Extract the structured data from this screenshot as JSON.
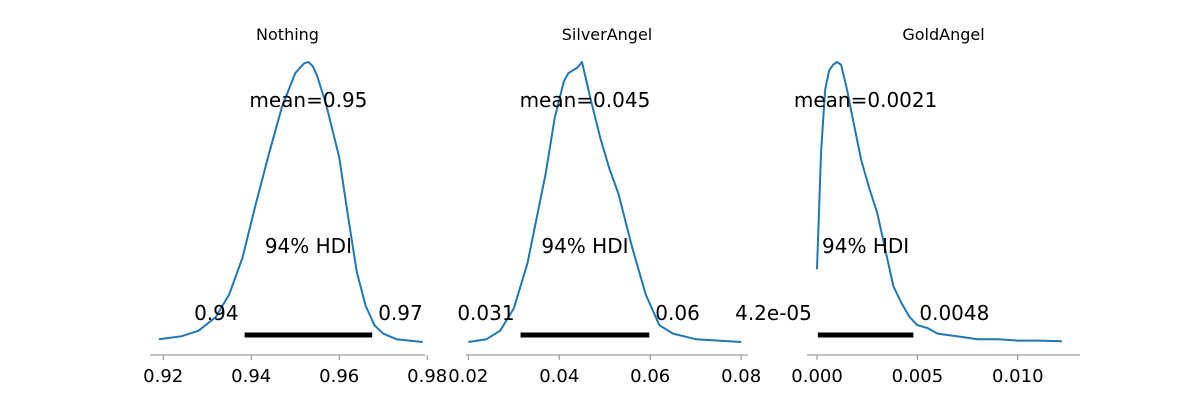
{
  "colors": {
    "curve": "#1f77b4",
    "hdi_bar": "#000000",
    "axis": "#888888"
  },
  "chart_data": [
    {
      "type": "area",
      "title": "Nothing",
      "mean_label": "mean=0.95",
      "hdi_label": "94% HDI",
      "hdi_low_label": "0.94",
      "hdi_high_label": "0.97",
      "hdi": [
        0.9385,
        0.9675
      ],
      "xlim": [
        0.917,
        0.9795
      ],
      "ticks": [
        0.92,
        0.94,
        0.96,
        0.98
      ],
      "tick_labels": [
        "0.92",
        "0.94",
        "0.96",
        "0.98"
      ],
      "density_x": [
        0.919,
        0.924,
        0.928,
        0.932,
        0.935,
        0.938,
        0.941,
        0.944,
        0.947,
        0.95,
        0.952,
        0.953,
        0.954,
        0.955,
        0.957,
        0.96,
        0.962,
        0.964,
        0.966,
        0.968,
        0.97,
        0.973,
        0.976,
        0.979
      ],
      "density_y": [
        0.01,
        0.02,
        0.04,
        0.09,
        0.17,
        0.3,
        0.49,
        0.67,
        0.84,
        0.96,
        0.995,
        1.0,
        0.985,
        0.95,
        0.85,
        0.66,
        0.45,
        0.25,
        0.13,
        0.06,
        0.03,
        0.01,
        0.005,
        0.0
      ]
    },
    {
      "type": "area",
      "title": "SilverAngel",
      "mean_label": "mean=0.045",
      "hdi_label": "94% HDI",
      "hdi_low_label": "0.031",
      "hdi_high_label": "0.06",
      "hdi": [
        0.0315,
        0.0598
      ],
      "xlim": [
        0.0195,
        0.0815
      ],
      "ticks": [
        0.02,
        0.04,
        0.06,
        0.08
      ],
      "tick_labels": [
        "0.02",
        "0.04",
        "0.06",
        "0.08"
      ],
      "density_x": [
        0.02,
        0.024,
        0.027,
        0.03,
        0.033,
        0.035,
        0.037,
        0.039,
        0.041,
        0.042,
        0.043,
        0.044,
        0.045,
        0.046,
        0.047,
        0.049,
        0.051,
        0.053,
        0.056,
        0.059,
        0.062,
        0.065,
        0.07,
        0.075,
        0.08
      ],
      "density_y": [
        0.0,
        0.01,
        0.04,
        0.12,
        0.28,
        0.44,
        0.6,
        0.8,
        0.93,
        0.96,
        0.97,
        0.98,
        1.0,
        0.93,
        0.86,
        0.73,
        0.62,
        0.53,
        0.34,
        0.17,
        0.06,
        0.03,
        0.01,
        0.005,
        0.0
      ]
    },
    {
      "type": "area",
      "title": "GoldAngel",
      "mean_label": "mean=0.0021",
      "hdi_label": "94% HDI",
      "hdi_low_label": "4.2e-05",
      "hdi_high_label": "0.0048",
      "hdi": [
        4.2e-05,
        0.0048
      ],
      "xlim": [
        -0.0005,
        0.0131
      ],
      "ticks": [
        0.0,
        0.005,
        0.01
      ],
      "tick_labels": [
        "0.000",
        "0.005",
        "0.010"
      ],
      "density_x": [
        0.0,
        0.0002,
        0.0004,
        0.0006,
        0.0008,
        0.001,
        0.0012,
        0.0015,
        0.0018,
        0.0022,
        0.0026,
        0.003,
        0.0034,
        0.0038,
        0.0042,
        0.0046,
        0.005,
        0.0055,
        0.006,
        0.007,
        0.008,
        0.009,
        0.01,
        0.011,
        0.0122
      ],
      "density_y": [
        0.26,
        0.68,
        0.9,
        0.97,
        0.99,
        1.0,
        0.99,
        0.9,
        0.79,
        0.65,
        0.55,
        0.46,
        0.33,
        0.2,
        0.14,
        0.09,
        0.06,
        0.05,
        0.03,
        0.02,
        0.01,
        0.01,
        0.005,
        0.005,
        0.003
      ]
    }
  ]
}
